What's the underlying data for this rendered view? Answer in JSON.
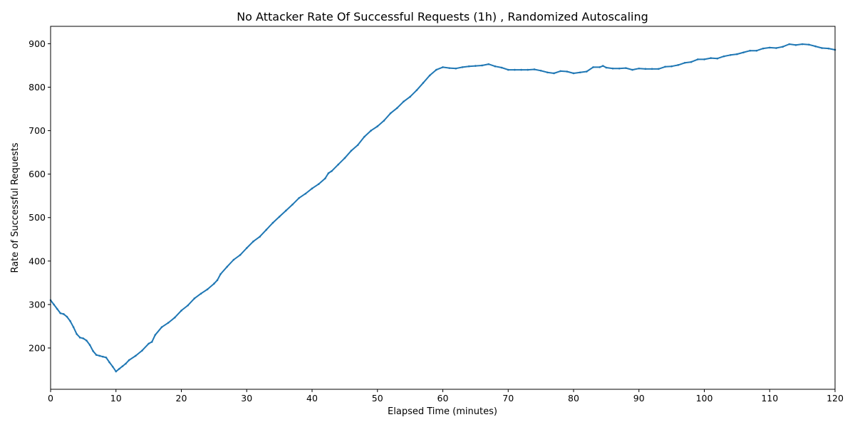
{
  "chart_data": {
    "type": "line",
    "title": "No Attacker Rate Of Successful Requests (1h) , Randomized Autoscaling",
    "xlabel": "Elapsed Time (minutes)",
    "ylabel": "Rate of Successful Requests",
    "xlim": [
      0,
      120
    ],
    "ylim": [
      105,
      940
    ],
    "xticks": [
      0,
      10,
      20,
      30,
      40,
      50,
      60,
      70,
      80,
      90,
      100,
      110,
      120
    ],
    "yticks": [
      200,
      300,
      400,
      500,
      600,
      700,
      800,
      900
    ],
    "grid": false,
    "line_color": "#1f77b4",
    "series": [
      {
        "x": [
          0,
          0.5,
          1,
          1.5,
          2,
          2.5,
          3,
          3.5,
          4,
          4.5,
          5,
          5.5,
          6,
          6.5,
          7,
          7.5,
          8,
          8.5,
          9,
          9.5,
          10,
          10.5,
          11,
          11.5,
          12,
          13,
          14,
          15,
          15.5,
          16,
          17,
          18,
          19,
          20,
          21,
          22,
          23,
          24,
          25,
          25.5,
          26,
          27,
          28,
          29,
          30,
          31,
          32,
          33,
          34,
          35,
          36,
          37,
          38,
          39,
          40,
          41,
          42,
          42.5,
          43,
          44,
          45,
          46,
          47,
          48,
          49,
          50,
          51,
          52,
          53,
          54,
          55,
          56,
          57,
          58,
          59,
          60,
          61,
          62,
          63,
          64,
          65,
          66,
          67,
          68,
          69,
          70,
          71,
          72,
          73,
          74,
          75,
          76,
          77,
          78,
          79,
          80,
          81,
          82,
          83,
          84,
          84.5,
          85,
          86,
          87,
          88,
          89,
          90,
          91,
          92,
          93,
          94,
          95,
          96,
          97,
          98,
          99,
          100,
          101,
          102,
          103,
          104,
          105,
          106,
          107,
          108,
          109,
          110,
          111,
          112,
          113,
          114,
          115,
          116,
          117,
          118,
          119,
          120
        ],
        "y": [
          310,
          300,
          290,
          280,
          278,
          272,
          262,
          248,
          232,
          224,
          222,
          217,
          207,
          193,
          184,
          182,
          180,
          178,
          167,
          157,
          146,
          152,
          158,
          164,
          172,
          182,
          194,
          210,
          214,
          230,
          248,
          258,
          270,
          286,
          298,
          314,
          325,
          335,
          348,
          356,
          370,
          387,
          403,
          414,
          430,
          445,
          456,
          472,
          488,
          502,
          516,
          530,
          545,
          555,
          567,
          577,
          590,
          602,
          607,
          622,
          637,
          654,
          667,
          686,
          700,
          710,
          723,
          740,
          752,
          767,
          778,
          793,
          810,
          827,
          840,
          846,
          844,
          843,
          846,
          848,
          849,
          850,
          853,
          848,
          845,
          840,
          840,
          840,
          840,
          841,
          838,
          834,
          832,
          837,
          836,
          832,
          834,
          836,
          846,
          846,
          849,
          845,
          843,
          843,
          844,
          840,
          843,
          842,
          842,
          842,
          847,
          848,
          851,
          856,
          858,
          864,
          864,
          867,
          866,
          871,
          874,
          876,
          880,
          884,
          884,
          889,
          891,
          890,
          893,
          899,
          897,
          899,
          898,
          894,
          890,
          889,
          886
        ]
      }
    ]
  }
}
